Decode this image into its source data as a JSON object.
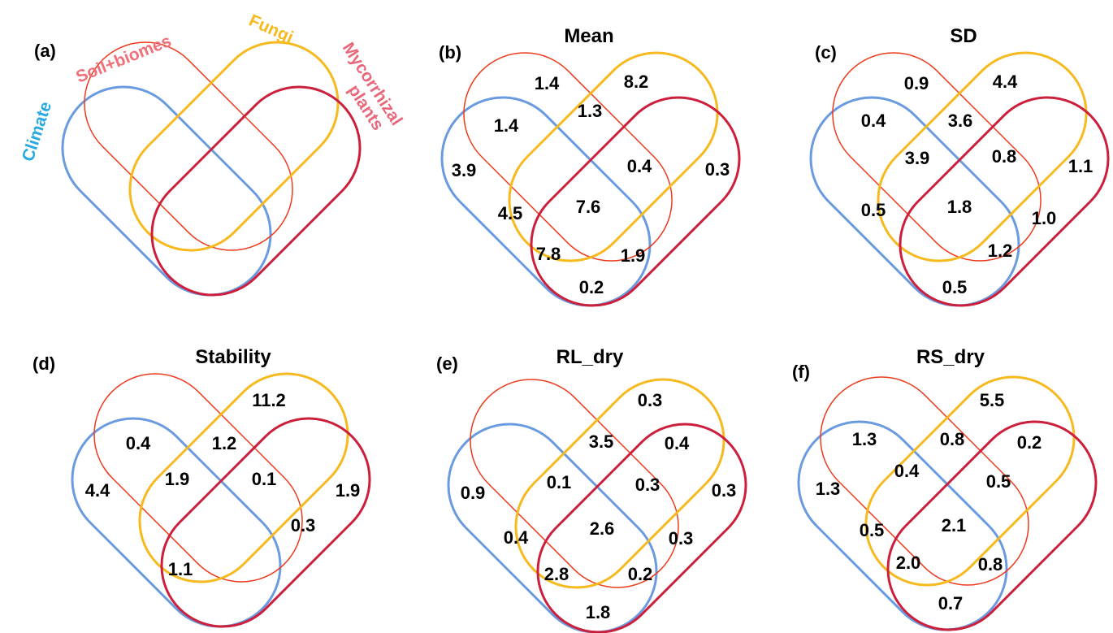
{
  "colors": {
    "climate": "#6a9be0",
    "soil": "#ee3a1c",
    "fungi": "#f6b91e",
    "myco": "#cc1f3c",
    "climate_label": "#29a9e1",
    "soil_label": "#f0707a",
    "fungi_label": "#f6b91e",
    "myco_label": "#e8677a",
    "text": "#000000"
  },
  "legend": {
    "climate": "Climate",
    "soil": "Soil+biomes",
    "fungi": "Fungi",
    "myco_line1": "Mycorrhizal",
    "myco_line2": "plants"
  },
  "panels": [
    {
      "id": "a",
      "tag": "(a)",
      "title": "",
      "values": []
    },
    {
      "id": "b",
      "tag": "(b)",
      "title": "Mean",
      "values": [
        "1.4",
        "8.2",
        "1.4",
        "1.3",
        "3.9",
        "0.4",
        "0.3",
        "4.5",
        "7.6",
        "7.8",
        "1.9",
        "0.2"
      ]
    },
    {
      "id": "c",
      "tag": "(c)",
      "title": "SD",
      "values": [
        "0.9",
        "4.4",
        "0.4",
        "3.6",
        "3.9",
        "0.8",
        "1.1",
        "0.5",
        "1.8",
        "1.0",
        "1.2",
        "0.5"
      ]
    },
    {
      "id": "d",
      "tag": "(d)",
      "title": "Stability",
      "values": [
        "11.2",
        "0.4",
        "1.2",
        "1.9",
        "0.1",
        "4.4",
        "1.9",
        "0.3",
        "1.1"
      ]
    },
    {
      "id": "e",
      "tag": "(e)",
      "title": "RL_dry",
      "values": [
        "0.3",
        "3.5",
        "0.4",
        "0.9",
        "0.1",
        "0.3",
        "0.3",
        "0.4",
        "2.6",
        "0.3",
        "2.8",
        "0.2",
        "1.8"
      ]
    },
    {
      "id": "f",
      "tag": "(f)",
      "title": "RS_dry",
      "values": [
        "5.5",
        "1.3",
        "0.8",
        "0.2",
        "0.4",
        "0.5",
        "1.3",
        "0.5",
        "2.1",
        "2.0",
        "0.8",
        "0.7"
      ]
    }
  ]
}
